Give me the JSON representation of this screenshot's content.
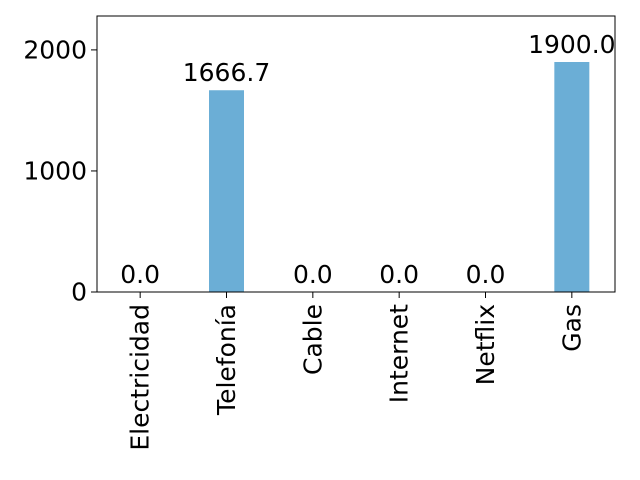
{
  "chart_data": {
    "type": "bar",
    "categories": [
      "Electricidad",
      "Telefonía",
      "Cable",
      "Internet",
      "Netflix",
      "Gas"
    ],
    "values": [
      0.0,
      1666.7,
      0.0,
      0.0,
      0.0,
      1900.0
    ],
    "data_labels": [
      "0.0",
      "1666.7",
      "0.0",
      "0.0",
      "0.0",
      "1900.0"
    ],
    "ylim": [
      0,
      2280
    ],
    "yticks": [
      0,
      1000,
      2000
    ],
    "ytick_labels": [
      "0",
      "1000",
      "2000"
    ],
    "bar_color": "#6baed6",
    "grid": false,
    "title": "",
    "xlabel": "",
    "ylabel": ""
  }
}
